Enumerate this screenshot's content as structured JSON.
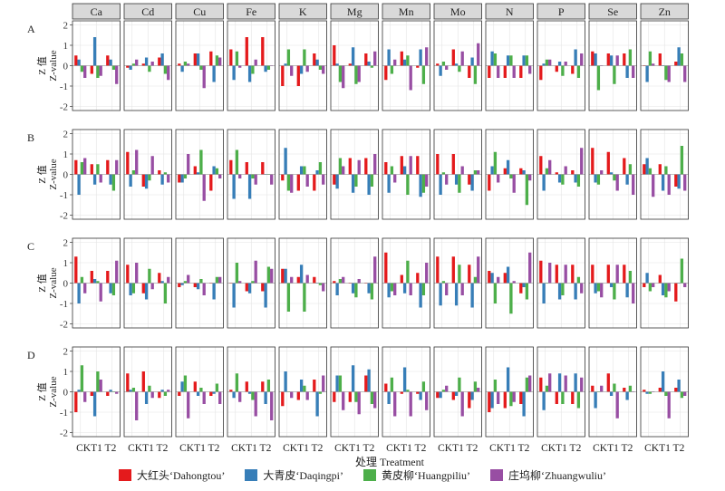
{
  "chart_data": {
    "type": "bar",
    "layout": "faceted-grid",
    "elements": [
      "Ca",
      "Cd",
      "Cu",
      "Fe",
      "K",
      "Mg",
      "Mn",
      "Mo",
      "N",
      "P",
      "Se",
      "Zn"
    ],
    "rows": [
      "A",
      "B",
      "C",
      "D"
    ],
    "categories": [
      "CK",
      "T1",
      "T2"
    ],
    "x_tick_text": "CKT1 T2",
    "ylabel_cn": "Z 值",
    "ylabel_en": "Z-value",
    "xlabel": "处理 Treatment",
    "ylim": [
      -2.2,
      2.2
    ],
    "yticks": [
      -2,
      -1,
      0,
      1,
      2
    ],
    "grid": true,
    "legend_position": "bottom",
    "series": [
      {
        "name": "大红头‘Dahongtou’",
        "color": "#e41a1c"
      },
      {
        "name": "大青皮‘Daqingpi’",
        "color": "#377eb8"
      },
      {
        "name": "黄皮柳‘Huangpiliu’",
        "color": "#4daf4a"
      },
      {
        "name": "庄坞柳‘Zhuangwuliu’",
        "color": "#984ea3"
      }
    ],
    "values": {
      "A": {
        "Ca": [
          [
            0.5,
            0.3,
            -0.3,
            -0.6
          ],
          [
            -0.4,
            1.4,
            -0.6,
            -0.5
          ],
          [
            0.5,
            0.3,
            -0.2,
            -0.9
          ]
        ],
        "Cd": [
          [
            -0.1,
            -0.2,
            0.1,
            0.3
          ],
          [
            0.1,
            0.4,
            -0.3,
            0.2
          ],
          [
            0.4,
            0.6,
            -0.4,
            -0.7
          ]
        ],
        "Cu": [
          [
            0.1,
            -0.3,
            0.2,
            0.1
          ],
          [
            0.6,
            0.6,
            -0.2,
            -1.1
          ],
          [
            0.7,
            -0.8,
            0.5,
            0.4
          ]
        ],
        "Fe": [
          [
            0.8,
            -0.7,
            0.7,
            -0.1
          ],
          [
            1.4,
            -0.8,
            -0.4,
            0.3
          ],
          [
            1.4,
            -0.3,
            -0.2,
            0.0
          ]
        ],
        "K": [
          [
            -1.0,
            0.1,
            0.8,
            -0.5
          ],
          [
            -1.0,
            -0.4,
            0.8,
            -0.3
          ],
          [
            0.6,
            0.3,
            -0.2,
            -0.4
          ]
        ],
        "Mg": [
          [
            1.0,
            0.1,
            -0.8,
            -1.1
          ],
          [
            0.1,
            0.9,
            -0.9,
            -0.8
          ],
          [
            0.6,
            0.2,
            -0.1,
            0.7
          ]
        ],
        "Mn": [
          [
            -0.7,
            0.8,
            -0.4,
            0.3
          ],
          [
            0.7,
            0.3,
            0.5,
            -1.2
          ],
          [
            -0.1,
            0.8,
            -0.9,
            0.9
          ]
        ],
        "Mo": [
          [
            0.1,
            -0.5,
            0.2,
            -0.2
          ],
          [
            0.8,
            0.1,
            -0.3,
            0.7
          ],
          [
            -0.6,
            0.4,
            -0.9,
            1.1
          ]
        ],
        "N": [
          [
            -0.6,
            0.7,
            0.6,
            -0.6
          ],
          [
            -0.6,
            0.5,
            0.5,
            -0.6
          ],
          [
            -0.6,
            0.5,
            0.5,
            -0.4
          ]
        ],
        "P": [
          [
            -0.7,
            0.1,
            0.3,
            0.3
          ],
          [
            -0.3,
            0.2,
            -0.5,
            0.2
          ],
          [
            -0.4,
            0.8,
            -0.6,
            0.6
          ]
        ],
        "Se": [
          [
            0.7,
            0.6,
            -1.2,
            0.0
          ],
          [
            0.6,
            0.5,
            -0.9,
            0.5
          ],
          [
            0.6,
            -0.6,
            0.8,
            -0.6
          ]
        ],
        "Zn": [
          [
            0.0,
            -0.8,
            0.7,
            0.1
          ],
          [
            0.6,
            0.0,
            -0.7,
            -0.8
          ],
          [
            0.2,
            0.9,
            0.6,
            -0.8
          ]
        ]
      },
      "B": {
        "Ca": [
          [
            0.7,
            -1.0,
            0.6,
            0.8
          ],
          [
            0.5,
            -0.5,
            0.5,
            -0.4
          ],
          [
            0.7,
            -0.5,
            -0.8,
            0.7
          ]
        ],
        "Cd": [
          [
            1.1,
            -0.6,
            0.2,
            1.2
          ],
          [
            -0.6,
            -0.7,
            -0.3,
            0.9
          ],
          [
            0.2,
            -0.5,
            0.1,
            -0.4
          ]
        ],
        "Cu": [
          [
            -0.4,
            -0.4,
            -0.2,
            1.0
          ],
          [
            0.4,
            0.1,
            1.2,
            -1.3
          ],
          [
            -0.8,
            0.4,
            0.3,
            -0.2
          ]
        ],
        "Fe": [
          [
            0.7,
            -1.2,
            1.2,
            -0.2
          ],
          [
            0.6,
            -1.2,
            -0.2,
            -0.5
          ],
          [
            0.6,
            0.0,
            0.0,
            -0.5
          ]
        ],
        "K": [
          [
            -0.3,
            1.3,
            -0.8,
            -0.9
          ],
          [
            -0.8,
            0.4,
            0.4,
            -0.6
          ],
          [
            -0.8,
            0.2,
            0.6,
            -0.5
          ]
        ],
        "Mg": [
          [
            -0.5,
            -0.7,
            0.8,
            0.4
          ],
          [
            0.8,
            -0.9,
            -0.6,
            0.7
          ],
          [
            0.8,
            -1.0,
            -0.6,
            1.0
          ]
        ],
        "Mn": [
          [
            0.6,
            -0.9,
            0.4,
            -0.4
          ],
          [
            0.9,
            0.4,
            -1.0,
            0.9
          ],
          [
            0.9,
            -1.1,
            -0.9,
            -0.6
          ]
        ],
        "Mo": [
          [
            1.0,
            -1.0,
            0.1,
            -0.5
          ],
          [
            1.0,
            -0.5,
            -0.9,
            0.4
          ],
          [
            -0.5,
            -0.8,
            0.2,
            0.2
          ]
        ],
        "N": [
          [
            -0.8,
            0.4,
            1.1,
            -0.4
          ],
          [
            0.3,
            0.7,
            -0.2,
            -0.9
          ],
          [
            0.3,
            0.2,
            -1.5,
            -0.3
          ]
        ],
        "P": [
          [
            0.9,
            -0.8,
            0.3,
            0.7
          ],
          [
            0.1,
            -0.4,
            -0.5,
            0.4
          ],
          [
            0.2,
            -0.4,
            -0.6,
            1.3
          ]
        ],
        "Se": [
          [
            1.3,
            -0.4,
            -0.5,
            0.2
          ],
          [
            1.1,
            0.1,
            -0.3,
            -0.8
          ],
          [
            0.8,
            -0.5,
            0.5,
            -1.0
          ]
        ],
        "Zn": [
          [
            0.5,
            0.8,
            0.3,
            -1.1
          ],
          [
            0.5,
            -0.8,
            0.4,
            -1.0
          ],
          [
            -0.6,
            -0.7,
            1.4,
            -0.8
          ]
        ]
      },
      "C": {
        "Ca": [
          [
            1.3,
            -1.0,
            0.3,
            -0.5
          ],
          [
            0.6,
            0.2,
            0.1,
            -0.9
          ],
          [
            0.6,
            -0.5,
            -0.6,
            1.1
          ]
        ],
        "Cd": [
          [
            0.9,
            -0.6,
            -0.5,
            1.0
          ],
          [
            -0.5,
            -0.8,
            0.7,
            -0.3
          ],
          [
            0.5,
            0.1,
            -1.0,
            0.3
          ]
        ],
        "Cu": [
          [
            -0.2,
            -0.1,
            0.1,
            0.4
          ],
          [
            -0.2,
            -0.3,
            0.2,
            -0.6
          ],
          [
            0.0,
            -0.8,
            0.3,
            0.3
          ]
        ],
        "Fe": [
          [
            0.0,
            -1.2,
            1.0,
            0.1
          ],
          [
            -0.4,
            -0.5,
            0.1,
            1.1
          ],
          [
            -0.4,
            -1.2,
            0.8,
            0.7
          ]
        ],
        "K": [
          [
            0.7,
            0.7,
            -1.4,
            0.3
          ],
          [
            0.3,
            0.9,
            -1.4,
            0.4
          ],
          [
            0.3,
            0.0,
            -0.1,
            -0.4
          ]
        ],
        "Mg": [
          [
            0.1,
            -0.6,
            0.2,
            0.3
          ],
          [
            0.0,
            -0.5,
            -0.7,
            0.2
          ],
          [
            0.0,
            -0.5,
            -0.8,
            1.3
          ]
        ],
        "Mn": [
          [
            1.5,
            -0.7,
            -0.4,
            -0.6
          ],
          [
            0.4,
            -0.5,
            1.1,
            -0.6
          ],
          [
            0.5,
            -1.2,
            -0.6,
            1.0
          ]
        ],
        "Mo": [
          [
            1.3,
            -1.1,
            0.1,
            -0.6
          ],
          [
            1.3,
            -1.1,
            0.9,
            -0.6
          ],
          [
            0.9,
            -1.2,
            0.3,
            1.3
          ]
        ],
        "N": [
          [
            0.6,
            0.5,
            -1.0,
            0.3
          ],
          [
            0.5,
            0.8,
            -1.5,
            0.1
          ],
          [
            -0.5,
            -0.2,
            -0.8,
            1.5
          ]
        ],
        "P": [
          [
            1.1,
            -1.0,
            0.0,
            1.0
          ],
          [
            0.9,
            -0.8,
            -0.6,
            0.9
          ],
          [
            0.9,
            -0.8,
            0.3,
            -0.5
          ]
        ],
        "Se": [
          [
            0.9,
            -0.5,
            -0.4,
            -0.7
          ],
          [
            0.9,
            -0.2,
            -0.8,
            0.9
          ],
          [
            0.9,
            -0.7,
            0.6,
            -1.0
          ]
        ],
        "Zn": [
          [
            -0.2,
            0.5,
            -0.4,
            -0.2
          ],
          [
            0.4,
            -0.6,
            -0.7,
            -0.4
          ],
          [
            -0.9,
            0.0,
            1.2,
            -0.2
          ]
        ]
      },
      "D": {
        "Ca": [
          [
            -1.0,
            0.1,
            1.3,
            -0.5
          ],
          [
            -0.2,
            -1.2,
            1.0,
            0.6
          ],
          [
            -0.2,
            0.1,
            0.0,
            -0.1
          ]
        ],
        "Cd": [
          [
            0.9,
            0.1,
            0.2,
            -1.4
          ],
          [
            1.0,
            -0.6,
            0.3,
            -0.3
          ],
          [
            -0.3,
            0.1,
            -0.2,
            0.1
          ]
        ],
        "Cu": [
          [
            -0.2,
            0.5,
            0.8,
            -1.3
          ],
          [
            0.5,
            -0.2,
            0.2,
            -0.6
          ],
          [
            -0.2,
            -0.1,
            0.4,
            -0.6
          ]
        ],
        "Fe": [
          [
            0.1,
            -0.3,
            0.9,
            -0.5
          ],
          [
            0.5,
            -0.1,
            -0.4,
            -1.2
          ],
          [
            0.5,
            -0.6,
            0.6,
            -1.4
          ]
        ],
        "K": [
          [
            -0.7,
            1.0,
            0.0,
            -0.3
          ],
          [
            -0.4,
            0.6,
            0.3,
            -0.4
          ],
          [
            0.6,
            -1.2,
            -0.1,
            0.8
          ]
        ],
        "Mg": [
          [
            -0.5,
            0.8,
            0.8,
            -0.9
          ],
          [
            -0.5,
            1.3,
            -0.5,
            -1.1
          ],
          [
            0.8,
            1.1,
            -0.6,
            -0.8
          ]
        ],
        "Mn": [
          [
            0.4,
            -0.6,
            0.7,
            -1.2
          ],
          [
            -0.1,
            1.2,
            0.1,
            -1.2
          ],
          [
            -0.1,
            -0.4,
            0.5,
            -0.9
          ]
        ],
        "Mo": [
          [
            -0.3,
            -0.3,
            0.1,
            0.3
          ],
          [
            -0.4,
            -0.2,
            0.7,
            -1.2
          ],
          [
            -0.8,
            -0.4,
            0.5,
            0.2
          ]
        ],
        "N": [
          [
            -1.0,
            -0.8,
            0.6,
            -0.6
          ],
          [
            -0.8,
            1.2,
            -0.7,
            -0.5
          ],
          [
            -0.6,
            -1.2,
            0.7,
            0.8
          ]
        ],
        "P": [
          [
            0.7,
            -0.9,
            0.3,
            0.9
          ],
          [
            -0.6,
            0.9,
            -0.6,
            0.8
          ],
          [
            -0.6,
            0.9,
            -0.8,
            0.7
          ]
        ],
        "Se": [
          [
            0.3,
            -0.8,
            0.0,
            0.3
          ],
          [
            0.9,
            -0.2,
            0.4,
            -1.3
          ],
          [
            0.2,
            -0.4,
            0.3,
            0.0
          ]
        ],
        "Zn": [
          [
            0.1,
            -0.1,
            -0.1,
            0.0
          ],
          [
            0.2,
            1.0,
            -0.2,
            -1.3
          ],
          [
            0.2,
            0.6,
            -0.3,
            -0.2
          ]
        ]
      }
    }
  }
}
